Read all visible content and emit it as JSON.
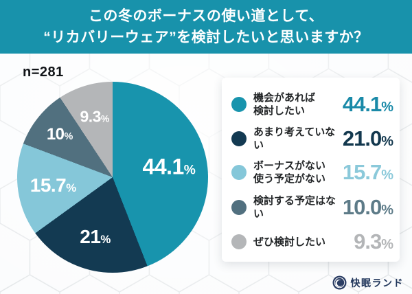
{
  "header": {
    "title_line1": "この冬のボーナスの使い道として、",
    "title_line2": "“リカバリーウェア”を検討したいと思いますか？",
    "banner_color": "#1892ab"
  },
  "sample": {
    "n_label": "n=281"
  },
  "chart_data": {
    "type": "pie",
    "title": "この冬のボーナスの使い道として、“リカバリーウェア”を検討したいと思いますか？",
    "sample_size": 281,
    "categories": [
      "機会があれば検討したい",
      "あまり考えていない",
      "ボーナスがない使う予定がない",
      "検討する予定はない",
      "ぜひ検討したい"
    ],
    "values": [
      44.1,
      21.0,
      15.7,
      10.0,
      9.3
    ],
    "colors": [
      "#1894ad",
      "#133a52",
      "#85c7d9",
      "#51707f",
      "#b4b6b8"
    ],
    "labels_unit": "%",
    "start_angle_deg": 0,
    "direction": "clockwise",
    "legend_position": "right"
  },
  "legend": {
    "items": [
      {
        "lines": [
          "機会があれば",
          "検討したい"
        ],
        "value": "44.1",
        "unit": "%",
        "color": "#1894ad",
        "value_color": "#1a8aa8"
      },
      {
        "lines": [
          "あまり考えていない"
        ],
        "value": "21.0",
        "unit": "%",
        "color": "#133a52",
        "value_color": "#13384e"
      },
      {
        "lines": [
          "ボーナスがない",
          "使う予定がない"
        ],
        "value": "15.7",
        "unit": "%",
        "color": "#85c7d9",
        "value_color": "#8bc9da"
      },
      {
        "lines": [
          "検討する予定はない"
        ],
        "value": "10.0",
        "unit": "%",
        "color": "#51707f",
        "value_color": "#5d7b88"
      },
      {
        "lines": [
          "ぜひ検討したい"
        ],
        "value": "9.3",
        "unit": "%",
        "color": "#b4b6b8",
        "value_color": "#b3b5b7"
      }
    ]
  },
  "footer": {
    "brand": "快眠ランド",
    "brand_color": "#22375c"
  }
}
